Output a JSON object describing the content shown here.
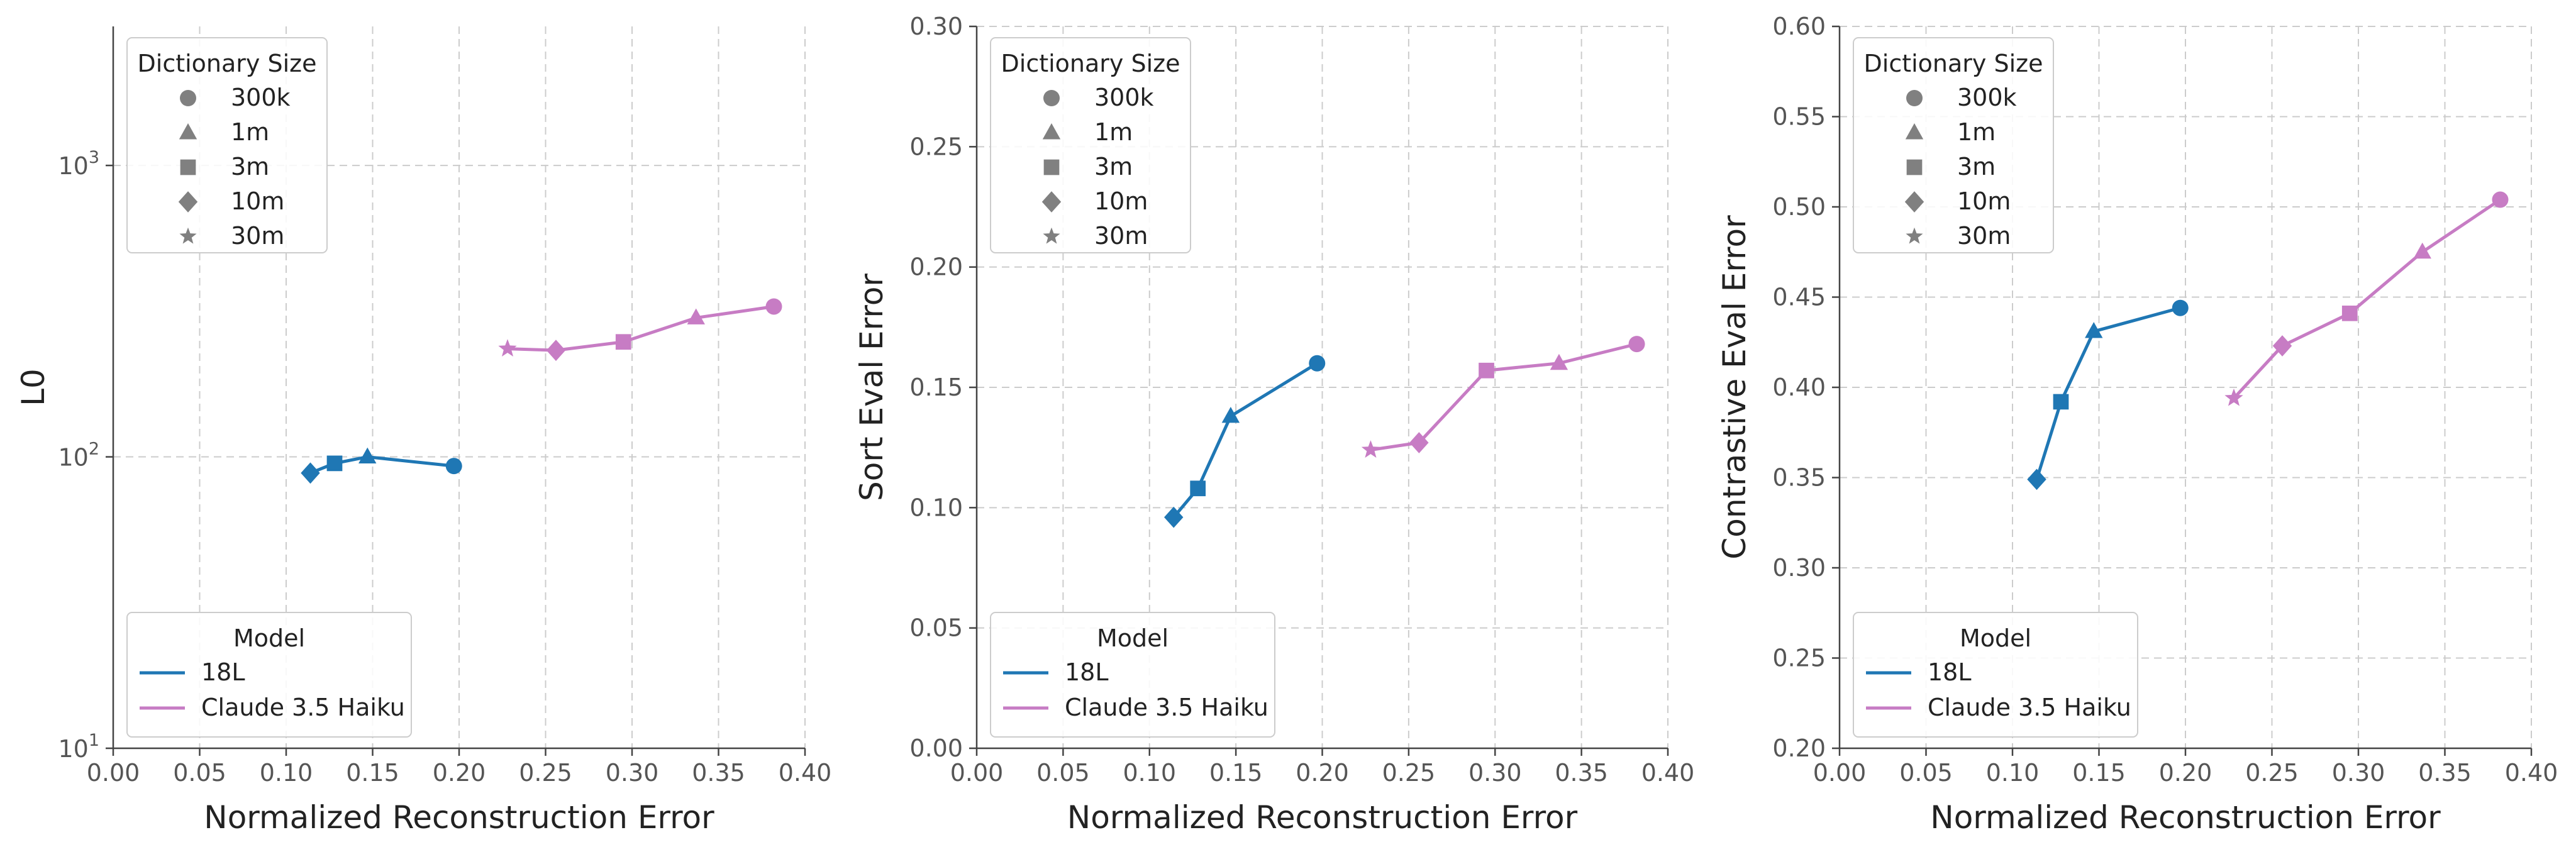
{
  "chart_data": [
    {
      "type": "line",
      "ylabel": "L0",
      "xlabel": "Normalized Reconstruction Error",
      "xlim": [
        0,
        0.4
      ],
      "ylim": [
        10,
        3000
      ],
      "yscale": "log",
      "xticks": [
        "0.00",
        "0.05",
        "0.10",
        "0.15",
        "0.20",
        "0.25",
        "0.30",
        "0.35",
        "0.40"
      ],
      "yticks": [
        {
          "value": 10,
          "base": "10",
          "exp": "1"
        },
        {
          "value": 100,
          "base": "10",
          "exp": "2"
        },
        {
          "value": 1000,
          "base": "10",
          "exp": "3"
        }
      ],
      "grid": true,
      "series": [
        {
          "name": "18L",
          "color": "#1f77b4",
          "points": [
            {
              "x": 0.114,
              "y": 88,
              "size": "10m"
            },
            {
              "x": 0.128,
              "y": 95,
              "size": "3m"
            },
            {
              "x": 0.147,
              "y": 100,
              "size": "1m"
            },
            {
              "x": 0.197,
              "y": 93,
              "size": "300k"
            }
          ]
        },
        {
          "name": "Claude 3.5 Haiku",
          "color": "#c77cc4",
          "points": [
            {
              "x": 0.228,
              "y": 235,
              "size": "30m"
            },
            {
              "x": 0.256,
              "y": 232,
              "size": "10m"
            },
            {
              "x": 0.295,
              "y": 248,
              "size": "3m"
            },
            {
              "x": 0.337,
              "y": 300,
              "size": "1m"
            },
            {
              "x": 0.382,
              "y": 328,
              "size": "300k"
            }
          ]
        }
      ],
      "legend_markers": {
        "title": "Dictionary Size",
        "position": "top-left",
        "items": [
          "300k",
          "1m",
          "3m",
          "10m",
          "30m"
        ]
      },
      "legend_models": {
        "title": "Model",
        "position": "bottom-left",
        "items": [
          "18L",
          "Claude 3.5 Haiku"
        ]
      }
    },
    {
      "type": "line",
      "ylabel": "Sort Eval Error",
      "xlabel": "Normalized Reconstruction Error",
      "xlim": [
        0,
        0.4
      ],
      "ylim": [
        0,
        0.3
      ],
      "yscale": "linear",
      "xticks": [
        "0.00",
        "0.05",
        "0.10",
        "0.15",
        "0.20",
        "0.25",
        "0.30",
        "0.35",
        "0.40"
      ],
      "yticks": [
        {
          "value": 0,
          "label": "0.00"
        },
        {
          "value": 0.05,
          "label": "0.05"
        },
        {
          "value": 0.1,
          "label": "0.10"
        },
        {
          "value": 0.15,
          "label": "0.15"
        },
        {
          "value": 0.2,
          "label": "0.20"
        },
        {
          "value": 0.25,
          "label": "0.25"
        },
        {
          "value": 0.3,
          "label": "0.30"
        }
      ],
      "grid": true,
      "series": [
        {
          "name": "18L",
          "color": "#1f77b4",
          "points": [
            {
              "x": 0.114,
              "y": 0.096,
              "size": "10m"
            },
            {
              "x": 0.128,
              "y": 0.108,
              "size": "3m"
            },
            {
              "x": 0.147,
              "y": 0.138,
              "size": "1m"
            },
            {
              "x": 0.197,
              "y": 0.16,
              "size": "300k"
            }
          ]
        },
        {
          "name": "Claude 3.5 Haiku",
          "color": "#c77cc4",
          "points": [
            {
              "x": 0.228,
              "y": 0.124,
              "size": "30m"
            },
            {
              "x": 0.256,
              "y": 0.127,
              "size": "10m"
            },
            {
              "x": 0.295,
              "y": 0.157,
              "size": "3m"
            },
            {
              "x": 0.337,
              "y": 0.16,
              "size": "1m"
            },
            {
              "x": 0.382,
              "y": 0.168,
              "size": "300k"
            }
          ]
        }
      ],
      "legend_markers": {
        "title": "Dictionary Size",
        "position": "top-left",
        "items": [
          "300k",
          "1m",
          "3m",
          "10m",
          "30m"
        ]
      },
      "legend_models": {
        "title": "Model",
        "position": "bottom-left",
        "items": [
          "18L",
          "Claude 3.5 Haiku"
        ]
      }
    },
    {
      "type": "line",
      "ylabel": "Contrastive Eval Error",
      "xlabel": "Normalized Reconstruction Error",
      "xlim": [
        0,
        0.4
      ],
      "ylim": [
        0.2,
        0.6
      ],
      "yscale": "linear",
      "xticks": [
        "0.00",
        "0.05",
        "0.10",
        "0.15",
        "0.20",
        "0.25",
        "0.30",
        "0.35",
        "0.40"
      ],
      "yticks": [
        {
          "value": 0.2,
          "label": "0.20"
        },
        {
          "value": 0.25,
          "label": "0.25"
        },
        {
          "value": 0.3,
          "label": "0.30"
        },
        {
          "value": 0.35,
          "label": "0.35"
        },
        {
          "value": 0.4,
          "label": "0.40"
        },
        {
          "value": 0.45,
          "label": "0.45"
        },
        {
          "value": 0.5,
          "label": "0.50"
        },
        {
          "value": 0.55,
          "label": "0.55"
        },
        {
          "value": 0.6,
          "label": "0.60"
        }
      ],
      "grid": true,
      "series": [
        {
          "name": "18L",
          "color": "#1f77b4",
          "points": [
            {
              "x": 0.114,
              "y": 0.349,
              "size": "10m"
            },
            {
              "x": 0.128,
              "y": 0.392,
              "size": "3m"
            },
            {
              "x": 0.147,
              "y": 0.431,
              "size": "1m"
            },
            {
              "x": 0.197,
              "y": 0.444,
              "size": "300k"
            }
          ]
        },
        {
          "name": "Claude 3.5 Haiku",
          "color": "#c77cc4",
          "points": [
            {
              "x": 0.228,
              "y": 0.394,
              "size": "30m"
            },
            {
              "x": 0.256,
              "y": 0.423,
              "size": "10m"
            },
            {
              "x": 0.295,
              "y": 0.441,
              "size": "3m"
            },
            {
              "x": 0.337,
              "y": 0.475,
              "size": "1m"
            },
            {
              "x": 0.382,
              "y": 0.504,
              "size": "300k"
            }
          ]
        }
      ],
      "legend_markers": {
        "title": "Dictionary Size",
        "position": "top-left",
        "items": [
          "300k",
          "1m",
          "3m",
          "10m",
          "30m"
        ]
      },
      "legend_models": {
        "title": "Model",
        "position": "bottom-left",
        "items": [
          "18L",
          "Claude 3.5 Haiku"
        ]
      }
    }
  ],
  "marker_shapes": {
    "300k": "circle",
    "1m": "triangle",
    "3m": "square",
    "10m": "diamond",
    "30m": "star"
  },
  "legend_marker_color": "#808080"
}
